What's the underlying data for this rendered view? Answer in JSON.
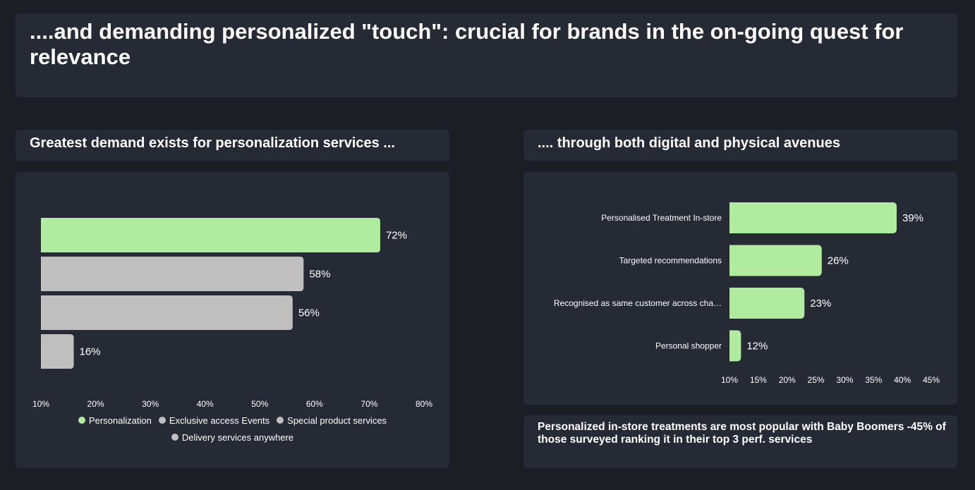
{
  "header": {
    "title": "....and demanding personalized \"touch\": crucial for brands in the on-going quest for relevance"
  },
  "left_panel": {
    "heading": "Greatest demand exists for personalization services ..."
  },
  "right_panel": {
    "heading": ".... through both digital and physical avenues",
    "note": "Personalized in-store treatments are most popular with Baby Boomers -45% of those surveyed ranking it in their top 3 perf. services"
  },
  "colors": {
    "highlight": "#b1ebA0",
    "muted": "#bfbfbf",
    "panel": "#262a35",
    "background": "#1b1e25"
  },
  "chart_data": [
    {
      "type": "bar",
      "orientation": "horizontal",
      "categories": [
        "Personalization",
        "Exclusive access Events",
        "Special product services",
        "Delivery services anywhere"
      ],
      "values": [
        72,
        58,
        56,
        16
      ],
      "value_labels": [
        "72%",
        "58%",
        "56%",
        "16%"
      ],
      "colors": [
        "#b1eba0",
        "#bfbfbf",
        "#bfbfbf",
        "#bfbfbf"
      ],
      "xlim": [
        10,
        80
      ],
      "xticks": [
        "10%",
        "20%",
        "30%",
        "40%",
        "50%",
        "60%",
        "70%",
        "80%"
      ],
      "legend": [
        "Personalization",
        "Exclusive access Events",
        "Special product services",
        "Delivery services anywhere"
      ],
      "legend_position": "bottom",
      "grid": false
    },
    {
      "type": "bar",
      "orientation": "horizontal",
      "categories": [
        "Personalised Treatment In-store",
        "Targeted recommendations",
        "Recognised as same customer across cha…",
        "Personal shopper"
      ],
      "values": [
        39,
        26,
        23,
        12
      ],
      "value_labels": [
        "39%",
        "26%",
        "23%",
        "12%"
      ],
      "colors": [
        "#b1eba0",
        "#b1eba0",
        "#b1eba0",
        "#b1eba0"
      ],
      "xlim": [
        10,
        45
      ],
      "xticks": [
        "10%",
        "15%",
        "20%",
        "25%",
        "30%",
        "35%",
        "40%",
        "45%"
      ],
      "grid": false
    }
  ]
}
